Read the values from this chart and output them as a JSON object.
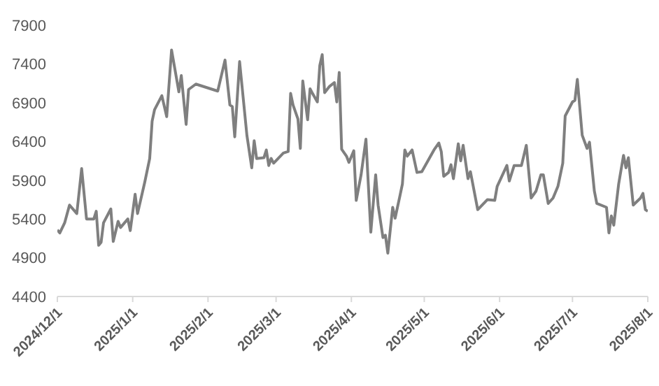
{
  "chart_data": {
    "type": "line",
    "x": [
      "2024-12-01",
      "2024-12-02",
      "2024-12-04",
      "2024-12-06",
      "2024-12-09",
      "2024-12-11",
      "2024-12-13",
      "2024-12-16",
      "2024-12-17",
      "2024-12-18",
      "2024-12-19",
      "2024-12-20",
      "2024-12-23",
      "2024-12-24",
      "2024-12-26",
      "2024-12-27",
      "2024-12-30",
      "2024-12-31",
      "2025-01-02",
      "2025-01-03",
      "2025-01-06",
      "2025-01-08",
      "2025-01-09",
      "2025-01-10",
      "2025-01-13",
      "2025-01-15",
      "2025-01-17",
      "2025-01-20",
      "2025-01-21",
      "2025-01-23",
      "2025-01-24",
      "2025-01-27",
      "2025-02-05",
      "2025-02-08",
      "2025-02-10",
      "2025-02-11",
      "2025-02-12",
      "2025-02-14",
      "2025-02-17",
      "2025-02-19",
      "2025-02-20",
      "2025-02-21",
      "2025-02-24",
      "2025-02-25",
      "2025-02-26",
      "2025-02-27",
      "2025-02-28",
      "2025-03-04",
      "2025-03-06",
      "2025-03-07",
      "2025-03-08",
      "2025-03-10",
      "2025-03-11",
      "2025-03-12",
      "2025-03-14",
      "2025-03-15",
      "2025-03-16",
      "2025-03-18",
      "2025-03-19",
      "2025-03-20",
      "2025-03-21",
      "2025-03-23",
      "2025-03-25",
      "2025-03-26",
      "2025-03-27",
      "2025-03-28",
      "2025-03-30",
      "2025-03-31",
      "2025-04-02",
      "2025-04-03",
      "2025-04-05",
      "2025-04-07",
      "2025-04-09",
      "2025-04-11",
      "2025-04-12",
      "2025-04-14",
      "2025-04-15",
      "2025-04-16",
      "2025-04-18",
      "2025-04-19",
      "2025-04-21",
      "2025-04-22",
      "2025-04-23",
      "2025-04-24",
      "2025-04-26",
      "2025-04-28",
      "2025-04-30",
      "2025-05-05",
      "2025-05-07",
      "2025-05-08",
      "2025-05-09",
      "2025-05-11",
      "2025-05-12",
      "2025-05-13",
      "2025-05-15",
      "2025-05-16",
      "2025-05-17",
      "2025-05-19",
      "2025-05-20",
      "2025-05-23",
      "2025-05-27",
      "2025-05-30",
      "2025-05-31",
      "2025-06-04",
      "2025-06-05",
      "2025-06-07",
      "2025-06-10",
      "2025-06-12",
      "2025-06-14",
      "2025-06-16",
      "2025-06-18",
      "2025-06-19",
      "2025-06-21",
      "2025-06-23",
      "2025-06-25",
      "2025-06-27",
      "2025-06-28",
      "2025-07-01",
      "2025-07-02",
      "2025-07-03",
      "2025-07-05",
      "2025-07-07",
      "2025-07-08",
      "2025-07-10",
      "2025-07-11",
      "2025-07-15",
      "2025-07-16",
      "2025-07-17",
      "2025-07-18",
      "2025-07-20",
      "2025-07-22",
      "2025-07-23",
      "2025-07-24",
      "2025-07-26",
      "2025-07-29",
      "2025-07-30",
      "2025-07-31",
      "2025-08-01"
    ],
    "series": [
      {
        "color": "#7f7f7f",
        "values": [
          5260,
          5220,
          5350,
          5580,
          5470,
          6050,
          5400,
          5400,
          5500,
          5060,
          5100,
          5350,
          5530,
          5110,
          5370,
          5290,
          5400,
          5250,
          5720,
          5470,
          5880,
          6180,
          6660,
          6810,
          6990,
          6720,
          7580,
          7040,
          7250,
          6620,
          7070,
          7140,
          7050,
          7450,
          6870,
          6850,
          6460,
          7430,
          6480,
          6060,
          6410,
          6180,
          6190,
          6290,
          6090,
          6180,
          6120,
          6250,
          6270,
          7020,
          6870,
          6690,
          6310,
          7180,
          6680,
          7080,
          7020,
          6910,
          7380,
          7520,
          7030,
          7110,
          7160,
          6910,
          7290,
          6300,
          6210,
          6130,
          6280,
          5640,
          5970,
          6430,
          5230,
          5970,
          5580,
          5160,
          5190,
          4960,
          5550,
          5410,
          5700,
          5850,
          6290,
          6210,
          6290,
          6000,
          6010,
          6290,
          6380,
          6270,
          5950,
          6000,
          6100,
          5920,
          6370,
          6150,
          6350,
          5920,
          6010,
          5520,
          5650,
          5640,
          5820,
          6090,
          5890,
          6090,
          6090,
          6350,
          5670,
          5760,
          5970,
          5970,
          5600,
          5670,
          5820,
          6120,
          6730,
          6910,
          6930,
          7200,
          6480,
          6310,
          6390,
          5760,
          5600,
          5550,
          5220,
          5440,
          5320,
          5850,
          6220,
          6060,
          6190,
          5580,
          5670,
          5730,
          5520,
          5500
        ]
      }
    ],
    "xlim": [
      "2024-12-01",
      "2025-08-01"
    ],
    "xticks": [
      {
        "value": "2024-12-01",
        "label": "2024/12/1"
      },
      {
        "value": "2025-01-01",
        "label": "2025/1/1"
      },
      {
        "value": "2025-02-01",
        "label": "2025/2/1"
      },
      {
        "value": "2025-03-01",
        "label": "2025/3/1"
      },
      {
        "value": "2025-04-01",
        "label": "2025/4/1"
      },
      {
        "value": "2025-05-01",
        "label": "2025/5/1"
      },
      {
        "value": "2025-06-01",
        "label": "2025/6/1"
      },
      {
        "value": "2025-07-01",
        "label": "2025/7/1"
      },
      {
        "value": "2025-08-01",
        "label": "2025/8/1"
      }
    ],
    "ylim": [
      4400,
      7900
    ],
    "yticks": [
      4400,
      4900,
      5400,
      5900,
      6400,
      6900,
      7400,
      7900
    ],
    "grid": false,
    "legend": false,
    "marker": "none",
    "line_style": "solid"
  }
}
